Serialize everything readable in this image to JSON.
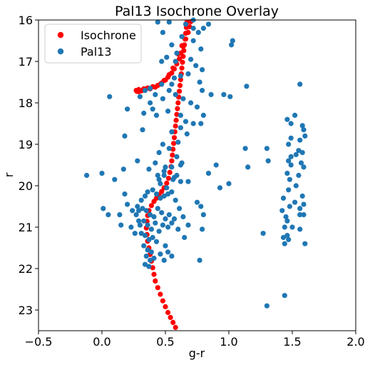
{
  "chart_data": {
    "type": "scatter",
    "title": "Pal13 Isochrone Overlay",
    "xlabel": "g-r",
    "ylabel": "r",
    "xlim": [
      -0.5,
      2.0
    ],
    "ylim": [
      23.5,
      16.0
    ],
    "y_inverted": true,
    "x_ticks": [
      "−0.5",
      "0.0",
      "0.5",
      "1.0",
      "1.5",
      "2.0"
    ],
    "x_tick_values": [
      -0.5,
      0.0,
      0.5,
      1.0,
      1.5,
      2.0
    ],
    "y_ticks": [
      "16",
      "17",
      "18",
      "19",
      "20",
      "21",
      "22",
      "23"
    ],
    "y_tick_values": [
      16,
      17,
      18,
      19,
      20,
      21,
      22,
      23
    ],
    "grid": false,
    "legend_placement": "top-left",
    "series": [
      {
        "name": "Isochrone",
        "color": "#ff0000",
        "marker": "circle",
        "points": [
          [
            0.58,
            23.42
          ],
          [
            0.56,
            23.3
          ],
          [
            0.54,
            23.18
          ],
          [
            0.52,
            23.06
          ],
          [
            0.5,
            22.92
          ],
          [
            0.48,
            22.78
          ],
          [
            0.46,
            22.62
          ],
          [
            0.44,
            22.46
          ],
          [
            0.42,
            22.3
          ],
          [
            0.41,
            22.14
          ],
          [
            0.4,
            21.98
          ],
          [
            0.39,
            21.82
          ],
          [
            0.38,
            21.66
          ],
          [
            0.37,
            21.5
          ],
          [
            0.36,
            21.34
          ],
          [
            0.355,
            21.18
          ],
          [
            0.35,
            21.02
          ],
          [
            0.355,
            20.86
          ],
          [
            0.36,
            20.72
          ],
          [
            0.37,
            20.6
          ],
          [
            0.39,
            20.48
          ],
          [
            0.41,
            20.38
          ],
          [
            0.43,
            20.3
          ],
          [
            0.45,
            20.22
          ],
          [
            0.47,
            20.14
          ],
          [
            0.49,
            20.05
          ],
          [
            0.51,
            19.94
          ],
          [
            0.525,
            19.82
          ],
          [
            0.535,
            19.68
          ],
          [
            0.545,
            19.54
          ],
          [
            0.55,
            19.4
          ],
          [
            0.555,
            19.26
          ],
          [
            0.56,
            19.12
          ],
          [
            0.565,
            18.98
          ],
          [
            0.57,
            18.84
          ],
          [
            0.575,
            18.7
          ],
          [
            0.58,
            18.56
          ],
          [
            0.585,
            18.42
          ],
          [
            0.59,
            18.28
          ],
          [
            0.595,
            18.14
          ],
          [
            0.6,
            18.0
          ],
          [
            0.605,
            17.86
          ],
          [
            0.61,
            17.72
          ],
          [
            0.615,
            17.58
          ],
          [
            0.62,
            17.44
          ],
          [
            0.625,
            17.3
          ],
          [
            0.63,
            17.16
          ],
          [
            0.635,
            17.02
          ],
          [
            0.64,
            16.88
          ],
          [
            0.645,
            16.74
          ],
          [
            0.65,
            16.6
          ],
          [
            0.655,
            16.46
          ],
          [
            0.66,
            16.32
          ],
          [
            0.665,
            16.18
          ],
          [
            0.67,
            16.05
          ],
          [
            0.63,
            16.62
          ],
          [
            0.6,
            16.82
          ],
          [
            0.58,
            17.0
          ],
          [
            0.56,
            17.16
          ],
          [
            0.53,
            17.32
          ],
          [
            0.5,
            17.45
          ],
          [
            0.46,
            17.55
          ],
          [
            0.42,
            17.62
          ],
          [
            0.38,
            17.66
          ],
          [
            0.34,
            17.69
          ],
          [
            0.31,
            17.71
          ],
          [
            0.29,
            17.73
          ],
          [
            0.275,
            17.72
          ],
          [
            0.27,
            17.7
          ],
          [
            0.29,
            17.68
          ],
          [
            0.33,
            17.66
          ],
          [
            0.36,
            17.64
          ],
          [
            0.4,
            17.61
          ],
          [
            0.44,
            17.58
          ],
          [
            0.47,
            17.52
          ],
          [
            0.49,
            17.46
          ],
          [
            0.52,
            17.38
          ],
          [
            0.55,
            17.28
          ],
          [
            0.57,
            17.18
          ],
          [
            0.59,
            17.06
          ],
          [
            0.61,
            16.94
          ],
          [
            0.62,
            16.8
          ],
          [
            0.64,
            16.64
          ],
          [
            0.66,
            16.46
          ],
          [
            0.68,
            16.3
          ],
          [
            0.69,
            16.16
          ],
          [
            0.7,
            16.04
          ]
        ]
      },
      {
        "name": "Pal13",
        "color": "#1f77b4",
        "marker": "circle",
        "points": [
          [
            0.72,
            16.0
          ],
          [
            0.66,
            16.1
          ],
          [
            0.72,
            16.2
          ],
          [
            0.76,
            16.3
          ],
          [
            0.8,
            16.2
          ],
          [
            0.63,
            16.4
          ],
          [
            0.72,
            16.5
          ],
          [
            0.78,
            16.7
          ],
          [
            0.84,
            16.1
          ],
          [
            1.02,
            16.6
          ],
          [
            1.03,
            16.5
          ],
          [
            0.53,
            16.05
          ],
          [
            0.44,
            16.05
          ],
          [
            0.48,
            16.3
          ],
          [
            0.55,
            16.6
          ],
          [
            0.59,
            16.8
          ],
          [
            0.51,
            16.9
          ],
          [
            0.47,
            17.0
          ],
          [
            0.58,
            17.0
          ],
          [
            0.7,
            16.95
          ],
          [
            0.74,
            17.1
          ],
          [
            0.79,
            17.2
          ],
          [
            0.77,
            17.5
          ],
          [
            0.68,
            17.3
          ],
          [
            0.62,
            17.35
          ],
          [
            0.57,
            17.4
          ],
          [
            0.55,
            17.55
          ],
          [
            0.53,
            17.7
          ],
          [
            0.47,
            17.55
          ],
          [
            0.42,
            17.8
          ],
          [
            0.38,
            17.65
          ],
          [
            0.34,
            17.7
          ],
          [
            0.3,
            17.85
          ],
          [
            0.06,
            17.85
          ],
          [
            0.38,
            18.0
          ],
          [
            0.48,
            17.9
          ],
          [
            0.58,
            17.8
          ],
          [
            0.64,
            17.9
          ],
          [
            0.7,
            18.0
          ],
          [
            0.75,
            18.1
          ],
          [
            0.8,
            18.3
          ],
          [
            0.79,
            17.7
          ],
          [
            0.86,
            17.8
          ],
          [
            0.96,
            17.8
          ],
          [
            1.01,
            17.85
          ],
          [
            1.14,
            17.6
          ],
          [
            1.56,
            17.55
          ],
          [
            0.4,
            18.15
          ],
          [
            0.43,
            18.3
          ],
          [
            0.52,
            18.2
          ],
          [
            0.62,
            18.3
          ],
          [
            0.66,
            18.45
          ],
          [
            0.72,
            18.5
          ],
          [
            0.78,
            18.5
          ],
          [
            0.62,
            18.6
          ],
          [
            0.67,
            18.75
          ],
          [
            0.55,
            18.7
          ],
          [
            0.6,
            18.95
          ],
          [
            0.48,
            19.0
          ],
          [
            0.53,
            19.1
          ],
          [
            0.45,
            19.2
          ],
          [
            0.59,
            19.3
          ],
          [
            0.62,
            19.5
          ],
          [
            0.55,
            19.55
          ],
          [
            0.49,
            19.65
          ],
          [
            0.44,
            19.75
          ],
          [
            0.28,
            19.4
          ],
          [
            0.17,
            19.6
          ],
          [
            0.1,
            19.85
          ],
          [
            -0.12,
            19.75
          ],
          [
            0.0,
            19.7
          ],
          [
            0.37,
            19.6
          ],
          [
            0.42,
            19.45
          ],
          [
            0.5,
            19.55
          ],
          [
            0.56,
            19.85
          ],
          [
            0.62,
            19.9
          ],
          [
            0.68,
            19.9
          ],
          [
            0.84,
            19.7
          ],
          [
            0.9,
            19.5
          ],
          [
            0.93,
            20.05
          ],
          [
            1.0,
            19.95
          ],
          [
            1.13,
            19.1
          ],
          [
            1.15,
            19.55
          ],
          [
            1.3,
            19.1
          ],
          [
            1.31,
            19.4
          ],
          [
            0.2,
            18.15
          ],
          [
            0.18,
            18.8
          ],
          [
            0.33,
            18.25
          ],
          [
            0.32,
            18.65
          ],
          [
            1.46,
            18.4
          ],
          [
            1.52,
            18.3
          ],
          [
            1.49,
            18.5
          ],
          [
            1.58,
            18.55
          ],
          [
            1.59,
            18.65
          ],
          [
            1.6,
            18.8
          ],
          [
            1.56,
            18.9
          ],
          [
            1.49,
            18.85
          ],
          [
            1.47,
            19.0
          ],
          [
            1.55,
            19.15
          ],
          [
            1.53,
            19.25
          ],
          [
            1.58,
            19.2
          ],
          [
            1.49,
            19.3
          ],
          [
            1.47,
            19.4
          ],
          [
            1.49,
            19.5
          ],
          [
            1.57,
            19.45
          ],
          [
            1.59,
            19.55
          ],
          [
            1.46,
            19.7
          ],
          [
            1.55,
            19.75
          ],
          [
            1.48,
            19.85
          ],
          [
            1.53,
            20.0
          ],
          [
            1.47,
            20.1
          ],
          [
            1.43,
            20.3
          ],
          [
            1.52,
            20.4
          ],
          [
            1.58,
            20.25
          ],
          [
            1.59,
            20.45
          ],
          [
            1.48,
            20.5
          ],
          [
            1.56,
            20.55
          ],
          [
            1.42,
            20.6
          ],
          [
            1.59,
            20.7
          ],
          [
            1.56,
            20.7
          ],
          [
            1.45,
            20.75
          ],
          [
            1.46,
            20.85
          ],
          [
            1.5,
            21.0
          ],
          [
            1.44,
            21.0
          ],
          [
            1.56,
            21.05
          ],
          [
            1.46,
            21.2
          ],
          [
            1.43,
            21.25
          ],
          [
            1.47,
            21.3
          ],
          [
            1.44,
            21.4
          ],
          [
            1.6,
            21.4
          ],
          [
            1.27,
            21.15
          ],
          [
            1.3,
            22.9
          ],
          [
            1.44,
            22.65
          ],
          [
            0.18,
            20.2
          ],
          [
            0.2,
            20.45
          ],
          [
            0.24,
            20.6
          ],
          [
            0.27,
            20.7
          ],
          [
            0.29,
            20.85
          ],
          [
            0.31,
            20.35
          ],
          [
            0.34,
            20.25
          ],
          [
            0.36,
            20.15
          ],
          [
            0.4,
            20.1
          ],
          [
            0.43,
            20.2
          ],
          [
            0.46,
            20.3
          ],
          [
            0.49,
            20.25
          ],
          [
            0.52,
            20.2
          ],
          [
            0.55,
            20.15
          ],
          [
            0.58,
            20.35
          ],
          [
            0.61,
            20.55
          ],
          [
            0.64,
            20.75
          ],
          [
            0.68,
            20.95
          ],
          [
            0.75,
            20.4
          ],
          [
            0.78,
            20.5
          ],
          [
            0.8,
            20.7
          ],
          [
            0.32,
            20.55
          ],
          [
            0.35,
            20.6
          ],
          [
            0.38,
            20.7
          ],
          [
            0.41,
            20.75
          ],
          [
            0.44,
            20.55
          ],
          [
            0.47,
            20.65
          ],
          [
            0.5,
            20.8
          ],
          [
            0.53,
            20.7
          ],
          [
            0.33,
            20.85
          ],
          [
            0.36,
            20.95
          ],
          [
            0.39,
            21.05
          ],
          [
            0.42,
            20.9
          ],
          [
            0.45,
            21.1
          ],
          [
            0.48,
            20.95
          ],
          [
            0.52,
            21.0
          ],
          [
            0.55,
            20.9
          ],
          [
            0.57,
            20.8
          ],
          [
            0.6,
            21.05
          ],
          [
            0.31,
            21.15
          ],
          [
            0.34,
            21.2
          ],
          [
            0.37,
            21.3
          ],
          [
            0.4,
            21.25
          ],
          [
            0.43,
            21.35
          ],
          [
            0.33,
            21.45
          ],
          [
            0.36,
            21.55
          ],
          [
            0.39,
            21.6
          ],
          [
            0.35,
            21.7
          ],
          [
            0.38,
            21.8
          ],
          [
            0.34,
            21.9
          ],
          [
            0.37,
            21.95
          ],
          [
            0.41,
            21.75
          ],
          [
            0.46,
            21.65
          ],
          [
            0.5,
            21.45
          ],
          [
            0.52,
            21.6
          ],
          [
            0.49,
            21.8
          ],
          [
            0.55,
            21.7
          ],
          [
            0.65,
            21.25
          ],
          [
            0.79,
            21.05
          ],
          [
            0.77,
            21.8
          ],
          [
            0.01,
            20.55
          ],
          [
            0.14,
            20.7
          ],
          [
            0.15,
            20.95
          ],
          [
            0.05,
            20.7
          ],
          [
            0.23,
            21.0
          ],
          [
            0.26,
            21.15
          ],
          [
            0.28,
            20.5
          ],
          [
            0.29,
            20.6
          ],
          [
            0.3,
            20.95
          ],
          [
            0.46,
            19.95
          ],
          [
            0.51,
            20.05
          ],
          [
            0.57,
            19.8
          ],
          [
            0.59,
            19.75
          ],
          [
            0.63,
            19.45
          ],
          [
            0.49,
            19.75
          ],
          [
            0.45,
            19.85
          ]
        ]
      }
    ]
  }
}
